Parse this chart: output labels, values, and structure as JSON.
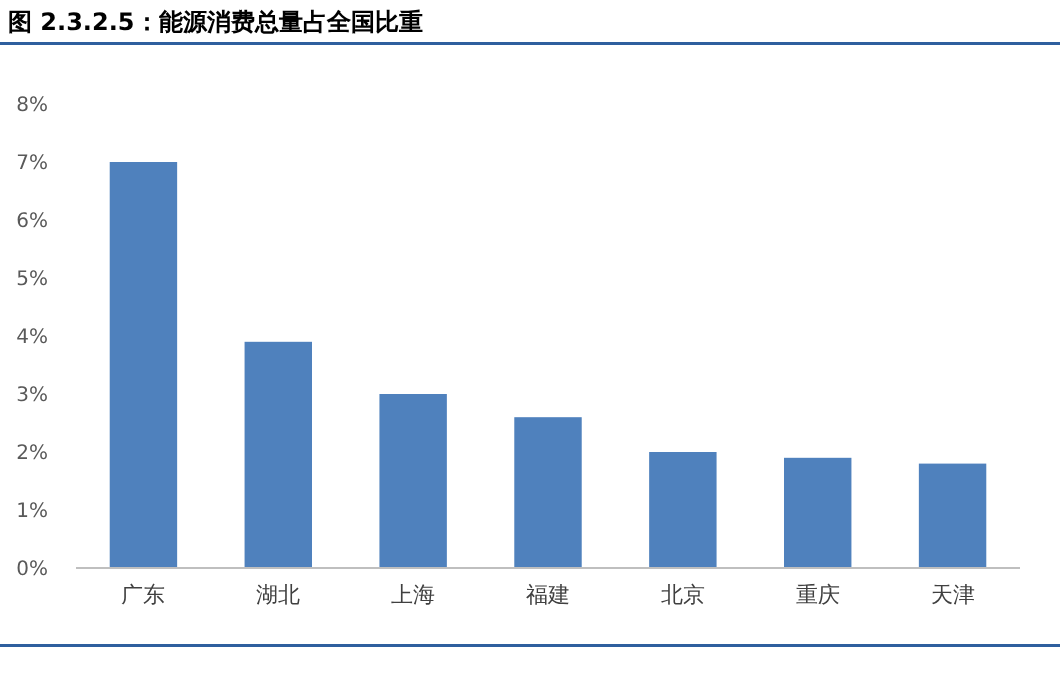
{
  "chart_data": {
    "type": "bar",
    "title": "图 2.3.2.5：能源消费总量占全国比重",
    "categories": [
      "广东",
      "湖北",
      "上海",
      "福建",
      "北京",
      "重庆",
      "天津"
    ],
    "values": [
      7.0,
      3.9,
      3.0,
      2.6,
      2.0,
      1.9,
      1.8
    ],
    "color": "#4f81bd",
    "ylim": [
      0,
      8
    ],
    "yticks": [
      {
        "value": 0,
        "label": "0%"
      },
      {
        "value": 1,
        "label": "1%"
      },
      {
        "value": 2,
        "label": "2%"
      },
      {
        "value": 3,
        "label": "3%"
      },
      {
        "value": 4,
        "label": "4%"
      },
      {
        "value": 5,
        "label": "5%"
      },
      {
        "value": 6,
        "label": "6%"
      },
      {
        "value": 7,
        "label": "7%"
      },
      {
        "value": 8,
        "label": "8%"
      }
    ],
    "grid": false
  }
}
